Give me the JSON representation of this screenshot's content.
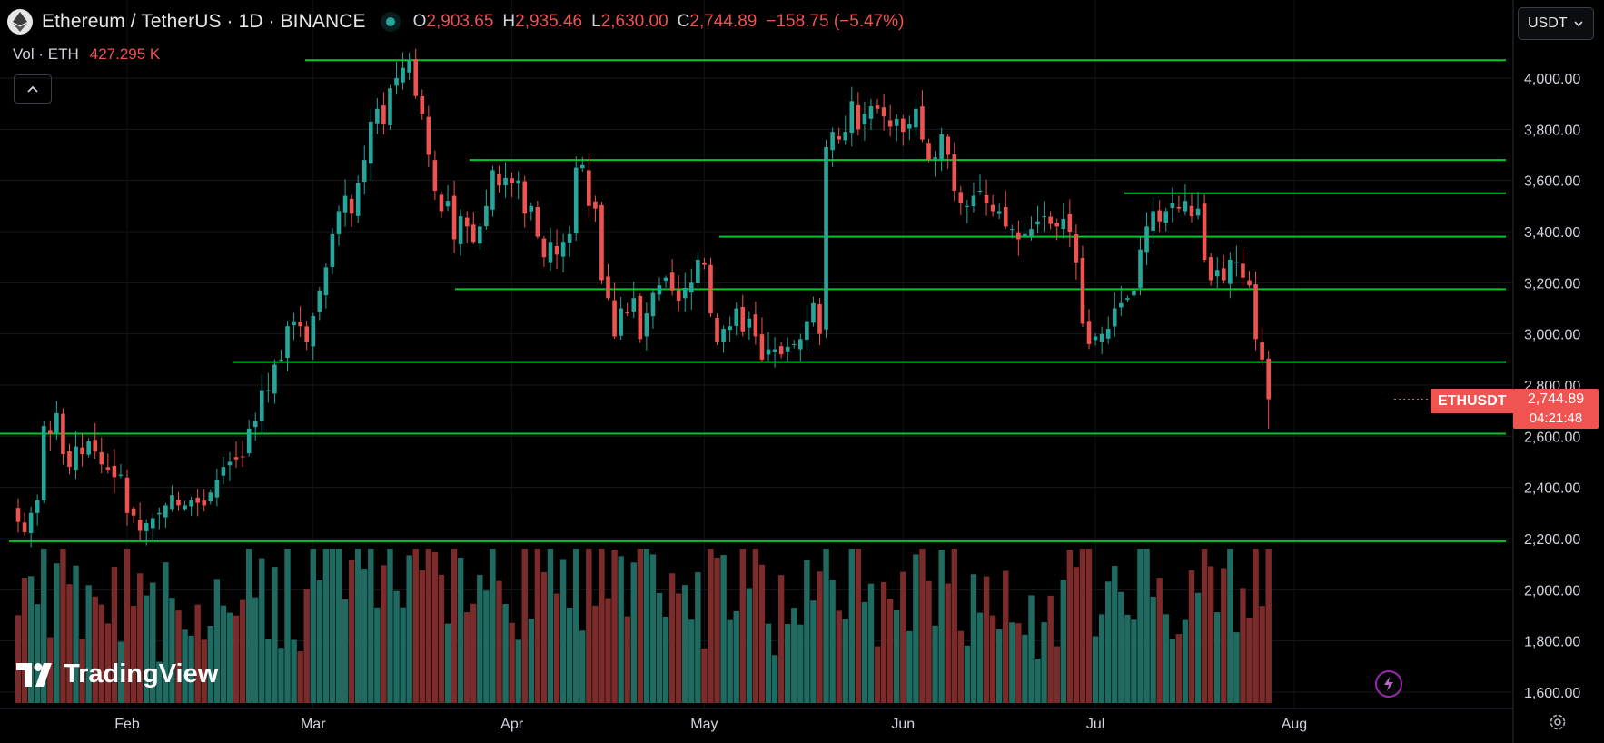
{
  "header": {
    "symbol": "Ethereum / TetherUS · 1D · BINANCE",
    "ohlc": {
      "o_label": "O",
      "o_value": "2,903.65",
      "h_label": "H",
      "h_value": "2,935.46",
      "l_label": "L",
      "l_value": "2,630.00",
      "c_label": "C",
      "c_value": "2,744.89",
      "change": "−158.75 (−5.47%)"
    },
    "volume_label": "Vol · ETH",
    "volume_value": "427.295 K"
  },
  "currency_selector": {
    "value": "USDT"
  },
  "last_price": {
    "symbol_tag": "ETHUSDT",
    "price": "2,744.89",
    "countdown": "04:21:48"
  },
  "watermark": "TradingView",
  "icons": {
    "symbol": "ethereum-icon",
    "collapse": "chevron-up-icon",
    "currency": "chevron-down-icon",
    "bolt": "lightning-icon",
    "settings": "gear-icon"
  },
  "colors": {
    "up": "#26a69a",
    "down": "#ef5350",
    "level": "#00c82a",
    "volume_up": "#1f6b62",
    "volume_down": "#7a2b2a"
  },
  "chart_data": {
    "type": "candlestick",
    "y_axis": {
      "min": 1600,
      "max": 4000,
      "ticks": [
        "4,000.00",
        "3,800.00",
        "3,600.00",
        "3,400.00",
        "3,200.00",
        "3,000.00",
        "2,800.00",
        "2,600.00",
        "2,400.00",
        "2,200.00",
        "2,000.00",
        "1,800.00",
        "1,600.00"
      ]
    },
    "x_labels": [
      "Feb",
      "Mar",
      "Apr",
      "May",
      "Jun",
      "Jul",
      "Aug"
    ],
    "closes": [
      2265,
      2225,
      2300,
      2350,
      2640,
      2610,
      2690,
      2530,
      2480,
      2560,
      2530,
      2580,
      2540,
      2490,
      2470,
      2440,
      2450,
      2300,
      2290,
      2230,
      2260,
      2280,
      2300,
      2330,
      2370,
      2330,
      2330,
      2350,
      2340,
      2330,
      2380,
      2430,
      2480,
      2500,
      2510,
      2520,
      2630,
      2660,
      2780,
      2780,
      2880,
      2900,
      3030,
      3050,
      3030,
      2970,
      3070,
      3170,
      3260,
      3390,
      3480,
      3540,
      3470,
      3590,
      3680,
      3830,
      3880,
      3820,
      3960,
      4000,
      4040,
      4070,
      3930,
      3860,
      3700,
      3560,
      3480,
      3520,
      3370,
      3460,
      3420,
      3360,
      3420,
      3500,
      3640,
      3580,
      3610,
      3590,
      3600,
      3470,
      3500,
      3380,
      3300,
      3360,
      3310,
      3360,
      3390,
      3650,
      3660,
      3500,
      3490,
      3210,
      3140,
      2990,
      3100,
      3080,
      3140,
      2980,
      3080,
      3160,
      3190,
      3220,
      3170,
      3130,
      3180,
      3200,
      3290,
      3270,
      3080,
      2970,
      3020,
      3030,
      3100,
      3010,
      3060,
      2990,
      2900,
      2940,
      2940,
      2920,
      2950,
      2960,
      2980,
      3050,
      3120,
      3000,
      3730,
      3790,
      3760,
      3790,
      3910,
      3800,
      3860,
      3890,
      3880,
      3850,
      3810,
      3840,
      3790,
      3820,
      3880,
      3760,
      3680,
      3690,
      3780,
      3700,
      3560,
      3510,
      3500,
      3540,
      3560,
      3510,
      3480,
      3480,
      3420,
      3410,
      3370,
      3390,
      3410,
      3440,
      3460,
      3430,
      3420,
      3450,
      3400,
      3280,
      3040,
      2960,
      2990,
      3000,
      3020,
      3100,
      3120,
      3140,
      3170,
      3330,
      3420,
      3480,
      3440,
      3480,
      3510,
      3490,
      3520,
      3460,
      3490,
      3290,
      3210,
      3250,
      3210,
      3290,
      3280,
      3220,
      3190,
      2980,
      2900,
      2744.89
    ],
    "levels": [
      4070,
      3680,
      3550,
      3380,
      3175,
      2890,
      2610,
      2190
    ]
  }
}
